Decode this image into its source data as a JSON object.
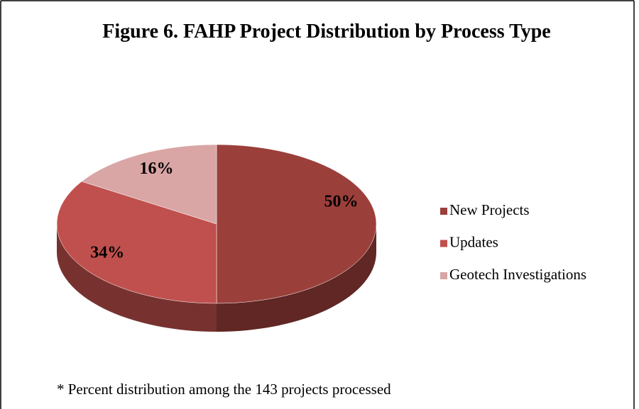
{
  "chart_data": {
    "type": "pie",
    "title": "Figure 6. FAHP Project Distribution by Process Type",
    "categories": [
      "New Projects",
      "Updates",
      "Geotech Investigations"
    ],
    "values": [
      50,
      34,
      16
    ],
    "value_labels": [
      "50%",
      "34%",
      "16%"
    ],
    "colors": [
      "#9b3f3b",
      "#c0504d",
      "#d9a6a5"
    ],
    "legend": "right",
    "annotation": "* Percent distribution among the 143 projects processed"
  }
}
